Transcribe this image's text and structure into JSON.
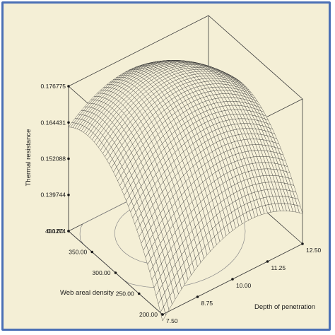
{
  "chart_data": {
    "type": "surface",
    "title": "",
    "xlabel": "Depth of penetration",
    "ylabel": "Web areal density",
    "zlabel": "Thermal resistance",
    "x_ticks": [
      "7.50",
      "8.75",
      "10.00",
      "11.25",
      "12.50"
    ],
    "y_ticks": [
      "200.00",
      "250.00",
      "300.00",
      "350.00",
      "400.00"
    ],
    "z_ticks": [
      "0.1274",
      "0.139744",
      "0.152088",
      "0.164431",
      "0.176775"
    ],
    "xlim": [
      7.5,
      12.5
    ],
    "ylim": [
      200,
      400
    ],
    "zlim": [
      0.1274,
      0.176775
    ],
    "surface_peak": {
      "x": 9.6,
      "y": 345,
      "z": 0.1768
    },
    "corner_values": [
      {
        "x": 7.5,
        "y": 200,
        "z": 0.138
      },
      {
        "x": 12.5,
        "y": 200,
        "z": 0.144
      },
      {
        "x": 7.5,
        "y": 400,
        "z": 0.1645
      },
      {
        "x": 12.5,
        "y": 400,
        "z": 0.135
      }
    ],
    "contour_on_floor": true,
    "grid": false
  }
}
